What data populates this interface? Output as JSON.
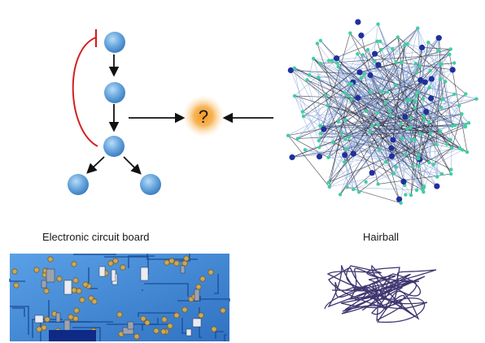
{
  "center_symbol": "?",
  "labels": {
    "electronic_circuit_board": "Electronic circuit board",
    "hairball": "Hairball"
  },
  "colors": {
    "node_fill": "#5a9bd5",
    "inhibit_line": "#d42020",
    "arrow": "#111111",
    "question_glow": "#f5a030",
    "network_green": "#3fcf9f",
    "network_blue": "#1f2f9f",
    "board_blue": "#3e86d6",
    "hairball_ink": "#2b2160"
  },
  "icons": {
    "pathway": "signaling-pathway-diagram",
    "network": "hairball-network-graph",
    "board": "circuit-board-photo",
    "hairball": "tangled-line-drawing"
  }
}
